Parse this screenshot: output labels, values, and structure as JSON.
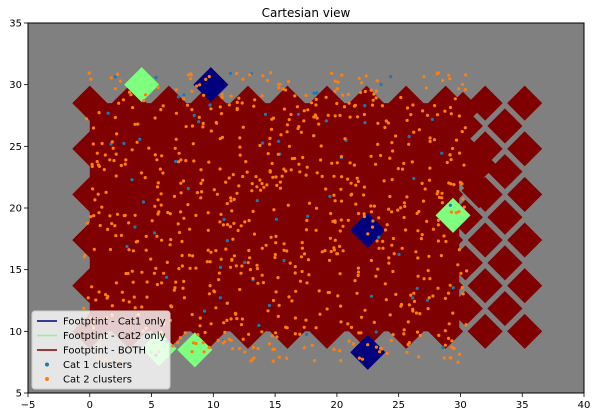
{
  "chart_data": {
    "type": "scatter",
    "title": "Cartesian view",
    "xlabel": "",
    "ylabel": "",
    "xlim": [
      -5,
      40
    ],
    "ylim": [
      5,
      35
    ],
    "xticks": [
      -5,
      0,
      5,
      10,
      15,
      20,
      25,
      30,
      35,
      40
    ],
    "yticks": [
      5,
      10,
      15,
      20,
      25,
      30,
      35
    ],
    "xtick_labels": [
      "−5",
      "0",
      "5",
      "10",
      "15",
      "20",
      "25",
      "30",
      "35",
      "40"
    ],
    "ytick_labels": [
      "5",
      "10",
      "15",
      "20",
      "25",
      "30",
      "35"
    ],
    "grid": false,
    "background_color": "#808080",
    "legend_position": "lower-left",
    "footprint": {
      "tile_half_diagonal": 1.4,
      "grid_x0": 0.0,
      "grid_dx": 3.2,
      "grid_nx": 12,
      "grid_y0": 10.0,
      "grid_dy": 3.7,
      "grid_ny": 6,
      "offset_x0": 1.6,
      "offset_y0": 11.85,
      "offset_nx": 11,
      "offset_ny": 5,
      "right_bulge": [
        [
          30.2,
          24.8
        ],
        [
          30.2,
          28.0
        ],
        [
          31.5,
          23.5
        ],
        [
          31.5,
          21.4
        ]
      ],
      "cat1_only_tiles": [
        [
          9.8,
          30.0
        ],
        [
          22.5,
          18.2
        ],
        [
          22.5,
          8.3
        ]
      ],
      "cat2_only_tiles": [
        [
          4.2,
          30.0
        ],
        [
          29.4,
          19.4
        ],
        [
          5.6,
          8.6
        ],
        [
          8.5,
          8.5
        ]
      ]
    },
    "series": [
      {
        "name": "Footptint - Cat1 only",
        "kind": "patch",
        "color": "#00007f"
      },
      {
        "name": "Footptint - Cat2 only",
        "kind": "patch",
        "color": "#7fff7f"
      },
      {
        "name": "Footptint - BOTH",
        "kind": "patch",
        "color": "#7f0000"
      },
      {
        "name": "Cat 1 clusters",
        "kind": "points",
        "color": "#1f77b4",
        "count": 70,
        "x_range": [
          0,
          30
        ],
        "y_range": [
          8,
          31
        ],
        "seed": 7
      },
      {
        "name": "Cat 2 clusters",
        "kind": "points",
        "color": "#ff7f0e",
        "count": 780,
        "x_range": [
          -0.5,
          30.5
        ],
        "y_range": [
          7.5,
          31
        ],
        "seed": 11
      }
    ],
    "legend": [
      {
        "label": "Footptint - Cat1 only",
        "marker": "line",
        "color": "#00007f"
      },
      {
        "label": "Footptint - Cat2 only",
        "marker": "line",
        "color": "#7fff7f"
      },
      {
        "label": "Footptint - BOTH",
        "marker": "line",
        "color": "#7f0000"
      },
      {
        "label": "Cat 1 clusters",
        "marker": "dot",
        "color": "#1f77b4"
      },
      {
        "label": "Cat 2 clusters",
        "marker": "dot",
        "color": "#ff7f0e"
      }
    ]
  }
}
